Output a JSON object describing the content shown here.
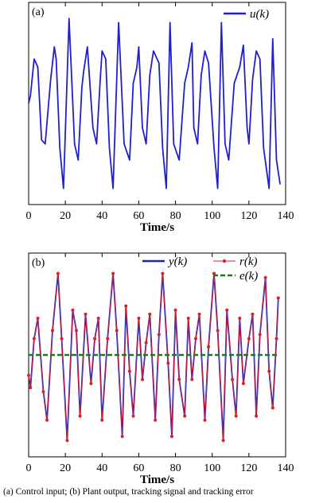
{
  "chart_data": [
    {
      "panel_label": "(a)",
      "type": "line",
      "xlabel": "Time/s",
      "ylabel": "",
      "xlim": [
        0,
        140
      ],
      "xticks": [
        0,
        20,
        40,
        60,
        80,
        100,
        120,
        140
      ],
      "grid": false,
      "legend_position": "top-right",
      "series": [
        {
          "name": "u(k)",
          "color": "#1f1fd0",
          "style": "solid",
          "x": [
            0,
            1,
            3,
            5,
            7,
            9,
            12,
            14,
            15,
            17,
            19,
            22,
            25,
            27,
            29,
            30,
            32,
            35,
            37,
            39,
            40,
            42,
            44,
            46,
            49,
            52,
            55,
            57,
            59,
            60,
            62,
            64,
            66,
            68,
            71,
            73,
            75,
            77,
            79,
            82,
            85,
            87,
            89,
            90,
            92,
            94,
            96,
            98,
            101,
            103,
            105,
            107,
            109,
            112,
            115,
            117,
            119,
            120,
            122,
            124,
            126,
            128,
            131,
            133,
            135,
            137
          ],
          "y": [
            0.0,
            0.1,
            0.55,
            0.45,
            -0.45,
            -0.5,
            0.3,
            0.7,
            0.55,
            -0.55,
            -1.05,
            1.05,
            -0.5,
            -0.7,
            0.2,
            0.4,
            0.7,
            -0.3,
            -0.5,
            0.3,
            0.65,
            0.55,
            -0.55,
            -1.05,
            1.0,
            -0.5,
            -0.7,
            0.25,
            0.45,
            0.7,
            -0.3,
            -0.5,
            0.35,
            0.65,
            0.5,
            -0.55,
            -1.05,
            1.0,
            -0.5,
            -0.7,
            0.25,
            0.45,
            0.75,
            -0.3,
            -0.5,
            0.35,
            0.65,
            0.5,
            -0.55,
            -1.05,
            1.0,
            -0.5,
            -0.7,
            0.25,
            0.45,
            0.72,
            -0.3,
            -0.5,
            0.3,
            0.65,
            0.55,
            -0.55,
            -1.05,
            0.8,
            -0.7,
            -1.0
          ]
        }
      ]
    },
    {
      "panel_label": "(b)",
      "type": "line",
      "xlabel": "Time/s",
      "ylabel": "",
      "xlim": [
        0,
        140
      ],
      "xticks": [
        0,
        20,
        40,
        60,
        80,
        100,
        120,
        140
      ],
      "grid": false,
      "legend_position": "top-right",
      "series": [
        {
          "name": "y(k)",
          "color": "#1f1fd0",
          "style": "solid",
          "x": [
            0,
            1,
            3,
            5,
            8,
            10,
            13,
            16,
            18,
            21,
            24,
            26,
            28,
            31,
            34,
            36,
            38,
            40,
            43,
            46,
            48,
            51,
            53,
            55,
            57,
            60,
            62,
            64,
            66,
            69,
            71,
            73,
            76,
            78,
            80,
            82,
            85,
            87,
            89,
            91,
            93,
            96,
            98,
            101,
            103,
            106,
            108,
            111,
            113,
            115,
            117,
            120,
            122,
            124,
            126,
            129,
            131,
            133,
            135,
            136
          ],
          "y": [
            -0.25,
            -0.4,
            0.2,
            0.45,
            -0.45,
            -0.8,
            0.3,
            1.0,
            0.2,
            -1.05,
            0.55,
            0.3,
            -0.75,
            0.5,
            -0.35,
            0.2,
            0.45,
            -0.8,
            0.2,
            1.0,
            0.3,
            -1.0,
            0.6,
            -0.2,
            -0.75,
            0.45,
            -0.3,
            0.15,
            0.5,
            -0.8,
            0.25,
            1.0,
            -0.1,
            -1.0,
            0.55,
            -0.3,
            -0.75,
            0.45,
            -0.3,
            0.2,
            0.5,
            -0.8,
            0.1,
            1.0,
            0.3,
            -1.05,
            0.55,
            -0.3,
            -0.75,
            0.45,
            -0.35,
            0.2,
            0.5,
            -0.75,
            0.25,
            0.95,
            -0.2,
            -0.65,
            0.2,
            0.7
          ]
        },
        {
          "name": "r(k)",
          "color": "#e02020",
          "style": "solid-with-markers",
          "x": [
            0,
            1,
            3,
            5,
            8,
            10,
            13,
            16,
            18,
            21,
            24,
            26,
            28,
            31,
            34,
            36,
            38,
            40,
            43,
            46,
            48,
            51,
            53,
            55,
            57,
            60,
            62,
            64,
            66,
            69,
            71,
            73,
            76,
            78,
            80,
            82,
            85,
            87,
            89,
            91,
            93,
            96,
            98,
            101,
            103,
            106,
            108,
            111,
            113,
            115,
            117,
            120,
            122,
            124,
            126,
            129,
            131,
            133,
            135,
            136
          ],
          "y": [
            -0.25,
            -0.4,
            0.2,
            0.45,
            -0.45,
            -0.8,
            0.3,
            1.0,
            0.2,
            -1.05,
            0.55,
            0.3,
            -0.75,
            0.5,
            -0.35,
            0.2,
            0.45,
            -0.8,
            0.2,
            1.0,
            0.3,
            -1.0,
            0.6,
            -0.2,
            -0.75,
            0.45,
            -0.3,
            0.15,
            0.5,
            -0.8,
            0.25,
            1.0,
            -0.1,
            -1.0,
            0.55,
            -0.3,
            -0.75,
            0.45,
            -0.3,
            0.2,
            0.5,
            -0.8,
            0.1,
            1.0,
            0.3,
            -1.05,
            0.55,
            -0.3,
            -0.75,
            0.45,
            -0.35,
            0.2,
            0.5,
            -0.75,
            0.25,
            0.95,
            -0.2,
            -0.65,
            0.2,
            0.7
          ]
        },
        {
          "name": "e(k)",
          "color": "#1a7a1a",
          "style": "dashed",
          "x": [
            0,
            10,
            20,
            30,
            40,
            50,
            60,
            70,
            80,
            90,
            100,
            110,
            120,
            130,
            136
          ],
          "y": [
            0,
            0,
            0,
            0,
            0,
            0,
            0,
            0,
            0,
            0,
            0,
            0,
            0,
            0,
            0
          ]
        }
      ]
    }
  ],
  "caption": "(a) Control input; (b) Plant output, tracking signal and tracking error"
}
